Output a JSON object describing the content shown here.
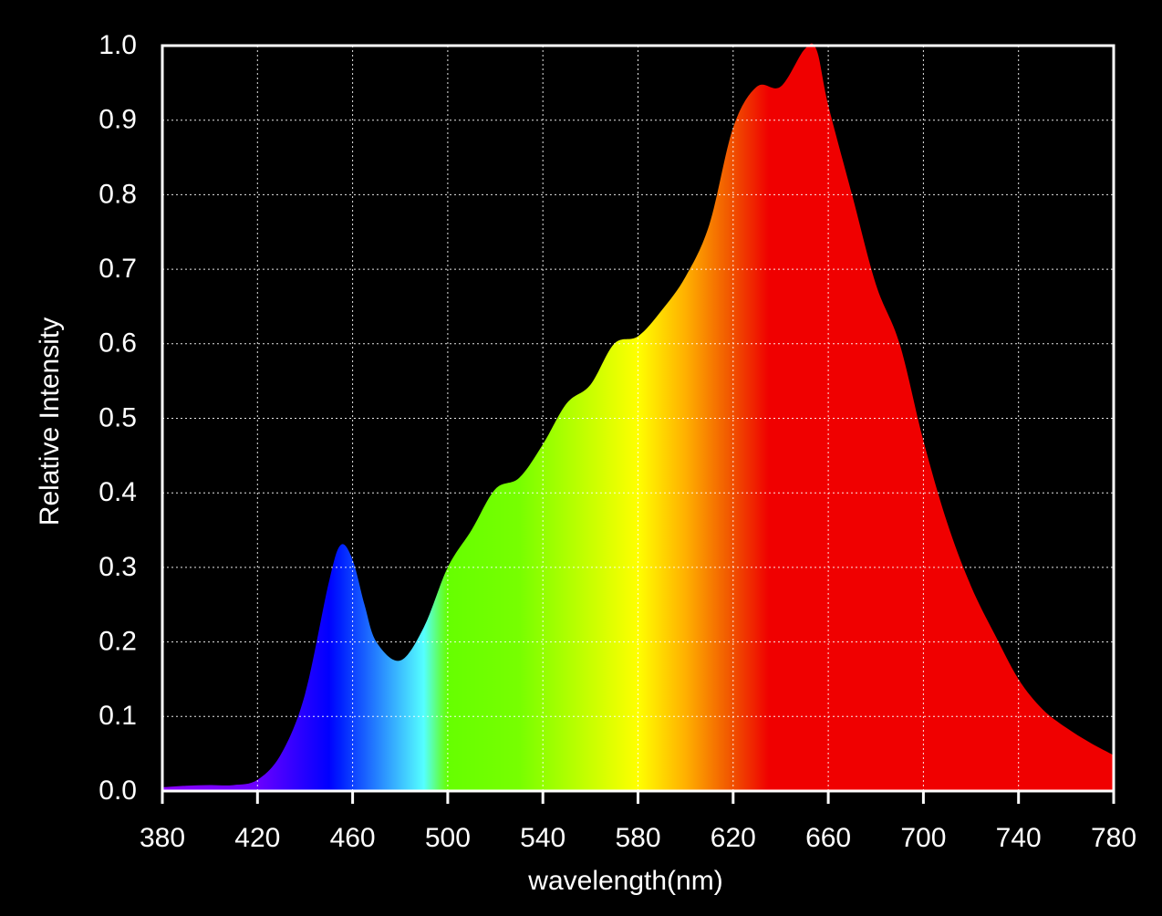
{
  "chart_data": {
    "type": "area",
    "x_label": "wavelength(nm)",
    "y_label": "Relative Intensity",
    "x": [
      380,
      390,
      400,
      410,
      420,
      430,
      440,
      450,
      455,
      460,
      465,
      470,
      480,
      490,
      500,
      510,
      520,
      530,
      540,
      550,
      560,
      570,
      580,
      590,
      600,
      610,
      620,
      630,
      640,
      650,
      655,
      660,
      670,
      680,
      690,
      700,
      710,
      720,
      730,
      740,
      750,
      760,
      770,
      780
    ],
    "values": [
      0.005,
      0.007,
      0.008,
      0.008,
      0.015,
      0.05,
      0.13,
      0.28,
      0.33,
      0.31,
      0.25,
      0.2,
      0.175,
      0.22,
      0.3,
      0.35,
      0.405,
      0.42,
      0.465,
      0.52,
      0.545,
      0.6,
      0.61,
      0.645,
      0.69,
      0.76,
      0.89,
      0.945,
      0.945,
      0.995,
      0.995,
      0.92,
      0.8,
      0.68,
      0.6,
      0.47,
      0.36,
      0.275,
      0.21,
      0.15,
      0.11,
      0.085,
      0.065,
      0.048
    ],
    "fill_gradient": [
      {
        "x": 380,
        "color": "#8a00ff"
      },
      {
        "x": 420,
        "color": "#6a00ff"
      },
      {
        "x": 450,
        "color": "#0000ff"
      },
      {
        "x": 455,
        "color": "#0020ff"
      },
      {
        "x": 490,
        "color": "#55ffff"
      },
      {
        "x": 500,
        "color": "#66ff00"
      },
      {
        "x": 530,
        "color": "#77ff00"
      },
      {
        "x": 580,
        "color": "#ffff00"
      },
      {
        "x": 600,
        "color": "#ffb000"
      },
      {
        "x": 620,
        "color": "#f05000"
      },
      {
        "x": 635,
        "color": "#f00000"
      },
      {
        "x": 780,
        "color": "#f00000"
      }
    ],
    "xlim": [
      380,
      780
    ],
    "ylim": [
      0,
      1
    ],
    "xticks": [
      380,
      420,
      460,
      500,
      540,
      580,
      620,
      660,
      700,
      740,
      780
    ],
    "yticks": [
      {
        "value": 0,
        "label": "0.0"
      },
      0.1,
      0.2,
      0.3,
      0.4,
      0.5,
      0.6,
      0.7,
      0.8,
      0.9,
      {
        "value": 1,
        "label": "1.0"
      }
    ],
    "grid": true
  }
}
